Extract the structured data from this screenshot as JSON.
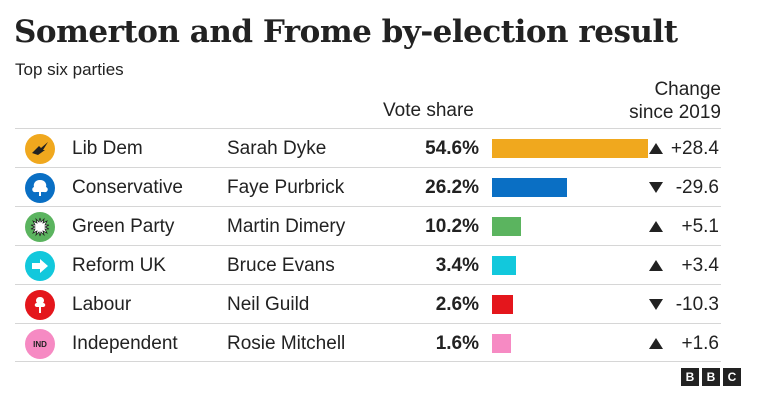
{
  "title": "Somerton and Frome by-election result",
  "subtitle": "Top six parties",
  "headers": {
    "vote_share": "Vote share",
    "change_line1": "Change",
    "change_line2": "since 2019"
  },
  "chart_data": {
    "type": "bar",
    "title": "Somerton and Frome by-election result",
    "subtitle": "Top six parties",
    "categories": [
      "Lib Dem",
      "Conservative",
      "Green Party",
      "Reform UK",
      "Labour",
      "Independent"
    ],
    "candidates": [
      "Sarah Dyke",
      "Faye Purbrick",
      "Martin Dimery",
      "Bruce Evans",
      "Neil Guild",
      "Rosie Mitchell"
    ],
    "values": [
      54.6,
      26.2,
      10.2,
      3.4,
      2.6,
      1.6
    ],
    "value_labels": [
      "54.6%",
      "26.2%",
      "10.2%",
      "3.4%",
      "2.6%",
      "1.6%"
    ],
    "change": [
      28.4,
      -29.6,
      5.1,
      3.4,
      -10.3,
      1.6
    ],
    "change_labels": [
      "+28.4",
      "-29.6",
      "+5.1",
      "+3.4",
      "-10.3",
      "+1.6"
    ],
    "colors": [
      "#f0a81e",
      "#0a6fc4",
      "#5bb45f",
      "#12c8dc",
      "#e4161c",
      "#f68ac3"
    ],
    "logos": [
      "libdem-bird-icon",
      "conservative-tree-icon",
      "green-party-icon",
      "reform-arrow-icon",
      "labour-rose-icon",
      "independent-ind-icon"
    ],
    "logo_text": [
      "",
      "",
      "",
      "",
      "",
      "IND"
    ],
    "xlim": [
      0,
      60
    ]
  },
  "branding": {
    "letters": [
      "B",
      "B",
      "C"
    ]
  }
}
